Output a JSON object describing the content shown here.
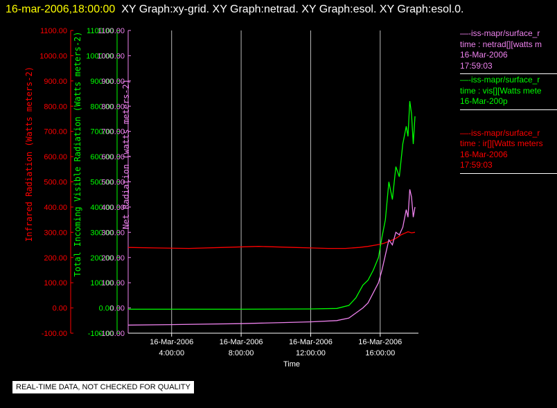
{
  "header": {
    "timestamp": "16-mar-2006,18:00:00",
    "graphs": "XY Graph:xy-grid.  XY Graph:netrad.  XY Graph:esol.  XY Graph:esol.0."
  },
  "legend": [
    {
      "lines": [
        "—-iss-mapr/surface_r",
        "time : netrad[][watts m",
        "16-Mar-2006",
        "17:59:03"
      ],
      "color": "#ee82ee"
    },
    {
      "lines": [
        "—-iss-mapr/surface_r",
        "time : vis[][Watts mete",
        "16-Mar-200p"
      ],
      "color": "#00ff00"
    },
    {
      "lines": [
        "—-iss-mapr/surface_r",
        "time : ir[][Watts meters",
        "16-Mar-2006",
        "17:59:03"
      ],
      "color": "#ff0000"
    }
  ],
  "footer": "REAL-TIME DATA, NOT CHECKED FOR QUALITY",
  "chart_data": {
    "type": "line",
    "xlabel": "Time",
    "x_ticks": [
      "16-Mar-2006\n4:00:00",
      "16-Mar-2006\n8:00:00",
      "16-Mar-2006\n12:00:00",
      "16-Mar-2006\n16:00:00"
    ],
    "x_tick_hours": [
      4,
      8,
      12,
      16
    ],
    "xlim_hours": [
      1.5,
      18.2
    ],
    "ylim": [
      -100,
      1100
    ],
    "y_ticks": [
      "1100.00",
      "1000.00",
      "900.00",
      "800.00",
      "700.00",
      "600.00",
      "500.00",
      "400.00",
      "300.00",
      "200.00",
      "100.00",
      "0.00",
      "-100.00"
    ],
    "axes": [
      {
        "label": "Infrared Radiation (Watts meters-2)",
        "color": "#ff0000"
      },
      {
        "label": "Total Incoming Visible Radiation (Watts meters-2)",
        "color": "#00ff00"
      },
      {
        "label": "Net Radiation (watts meters-2)",
        "color": "#ee82ee"
      }
    ],
    "vertical_grid": true,
    "series": [
      {
        "color": "#ff0000",
        "x": [
          1.5,
          3,
          5,
          7,
          9,
          11,
          12,
          13,
          14,
          14.8,
          15.3,
          15.8,
          16.2,
          16.5,
          16.8,
          17.0,
          17.2,
          17.4,
          17.6,
          17.8,
          18.0
        ],
        "y": [
          240,
          238,
          236,
          240,
          244,
          240,
          238,
          236,
          236,
          240,
          244,
          250,
          256,
          264,
          272,
          280,
          290,
          296,
          302,
          298,
          300
        ]
      },
      {
        "color": "#00ff00",
        "x": [
          1.5,
          4,
          8,
          12,
          13.5,
          14.2,
          14.6,
          15.0,
          15.3,
          15.6,
          15.9,
          16.1,
          16.3,
          16.5,
          16.7,
          16.9,
          17.1,
          17.3,
          17.5,
          17.6,
          17.7,
          17.8,
          17.9,
          18.0
        ],
        "y": [
          -5,
          -5,
          -5,
          -4,
          -2,
          10,
          40,
          90,
          110,
          150,
          200,
          280,
          350,
          500,
          430,
          560,
          520,
          650,
          720,
          680,
          820,
          770,
          650,
          760
        ]
      },
      {
        "color": "#ee82ee",
        "x": [
          1.5,
          4,
          8,
          12,
          13.5,
          14.2,
          14.6,
          15.0,
          15.3,
          15.6,
          15.9,
          16.1,
          16.3,
          16.5,
          16.7,
          16.9,
          17.1,
          17.3,
          17.5,
          17.6,
          17.7,
          17.8,
          17.9,
          18.0
        ],
        "y": [
          -68,
          -66,
          -62,
          -55,
          -50,
          -40,
          -20,
          0,
          20,
          60,
          100,
          150,
          210,
          270,
          250,
          300,
          290,
          320,
          390,
          360,
          470,
          440,
          360,
          400
        ]
      }
    ]
  }
}
